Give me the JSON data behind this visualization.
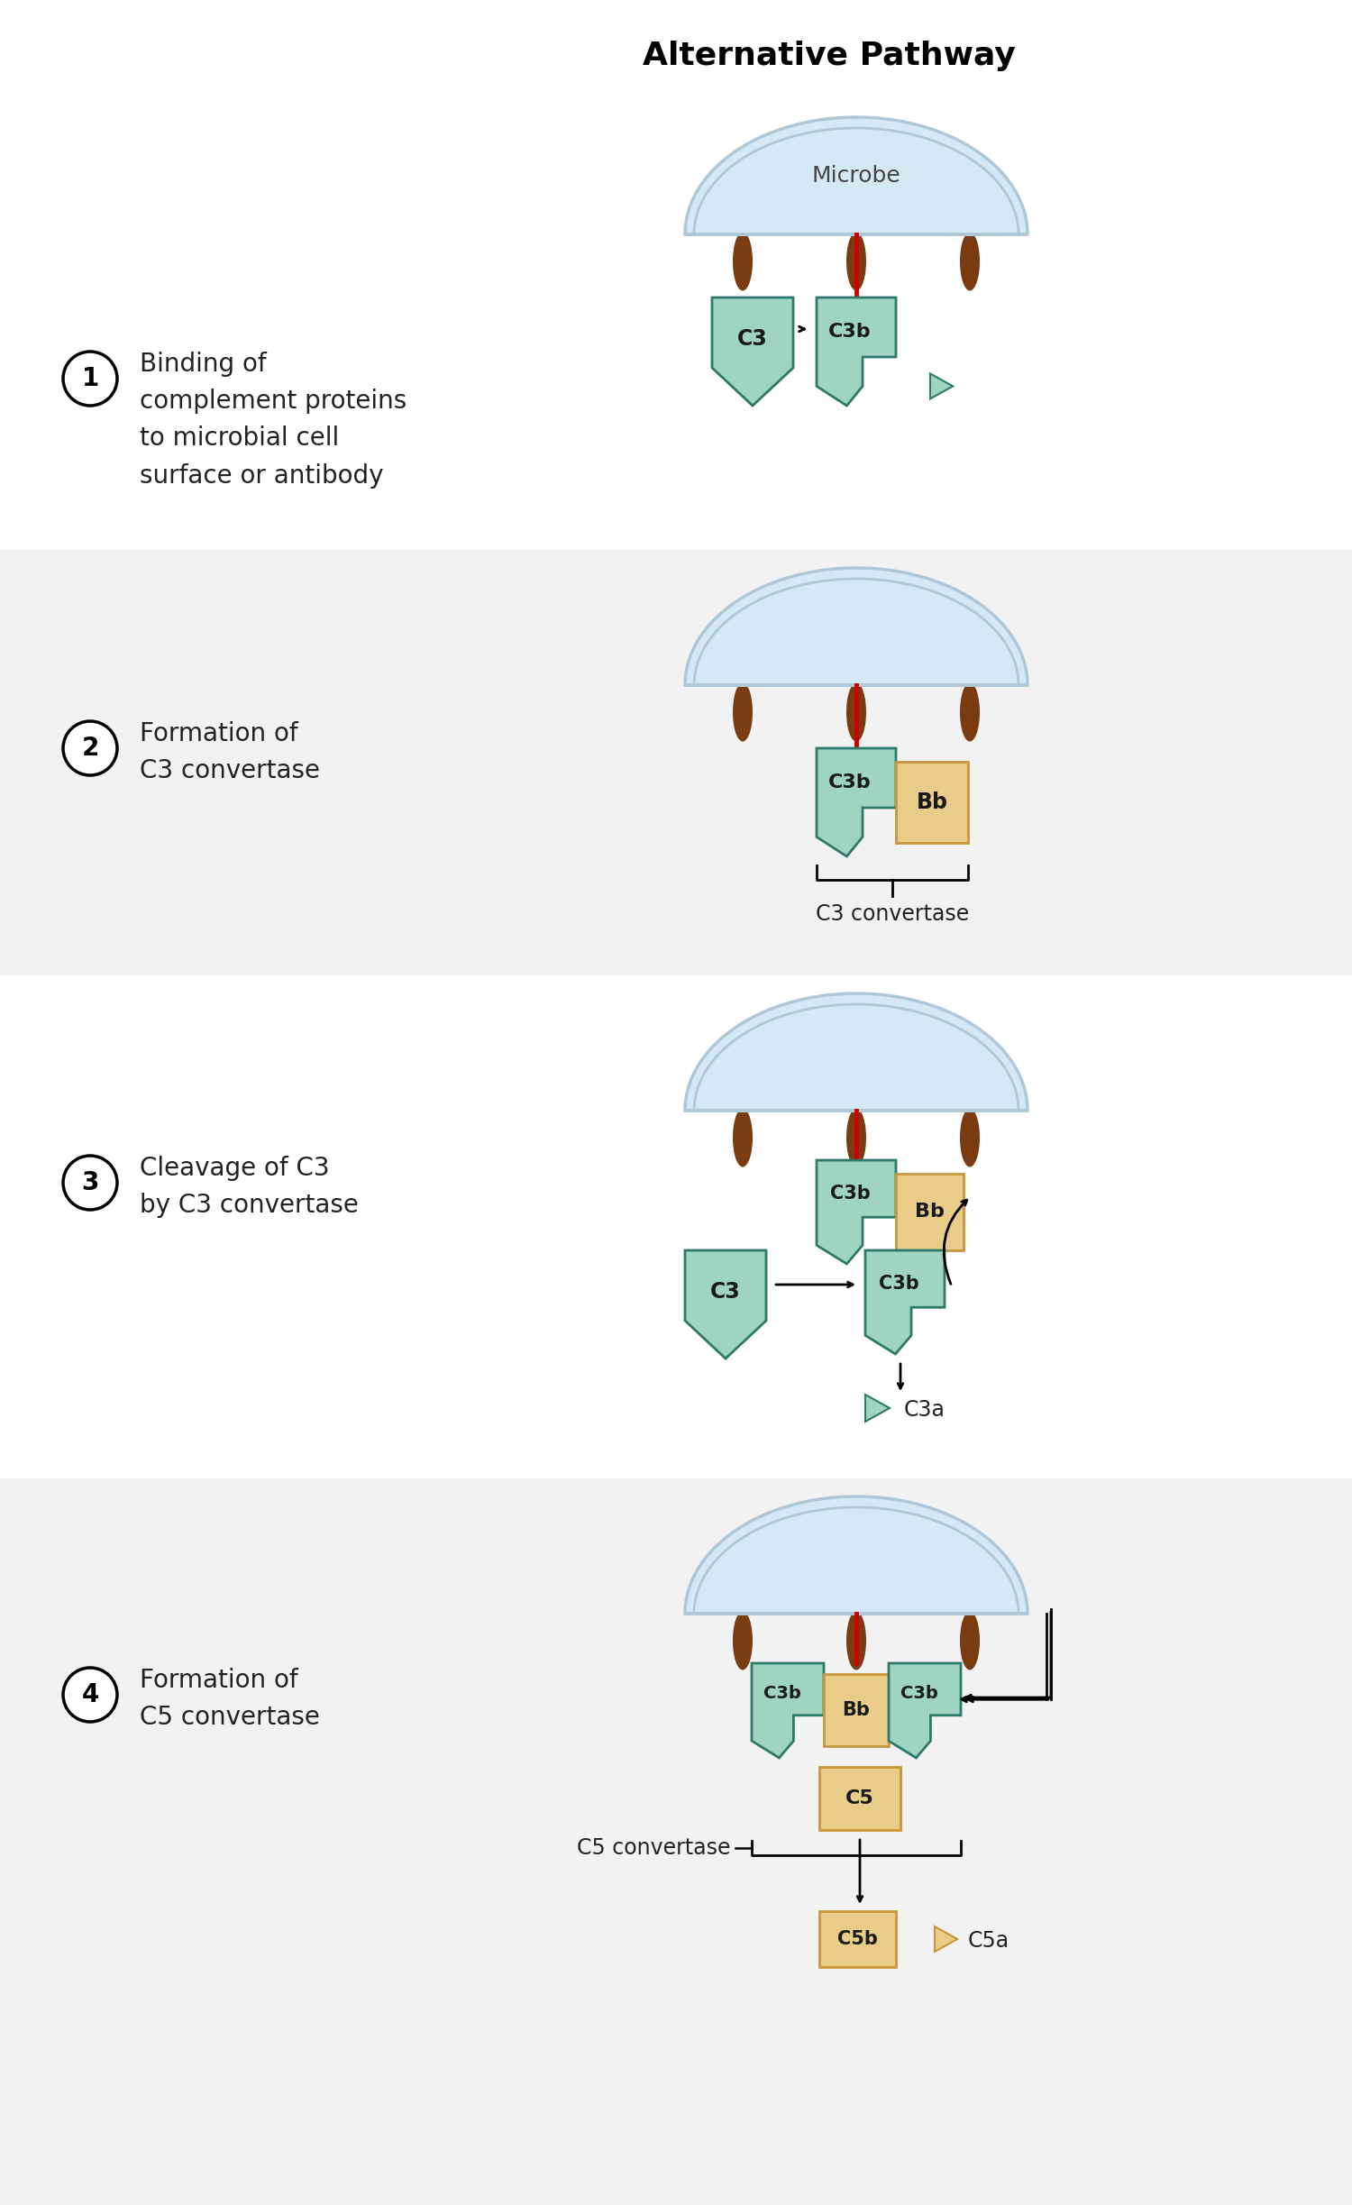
{
  "title": "Alternative Pathway",
  "title_fontsize": 26,
  "title_fontweight": "bold",
  "bg_color": "#ffffff",
  "panel2_bg": "#f2f2f2",
  "panel4_bg": "#f2f2f2",
  "microbe_fill": "#d4e8f5",
  "microbe_stroke": "#aec8d8",
  "leg_color": "#7a3b10",
  "red_line": "#cc0000",
  "green_dark": "#2d7a6b",
  "green_light": "#9ed4c0",
  "gold_fill": "#c8963c",
  "gold_light": "#e8cc88",
  "black": "#222222",
  "step1_text": "Binding of\ncomplement proteins\nto microbial cell\nsurface or antibody",
  "step2_text": "Formation of\nC3 convertase",
  "step3_text": "Cleavage of C3\nby C3 convertase",
  "step4_text": "Formation of\nC5 convertase"
}
